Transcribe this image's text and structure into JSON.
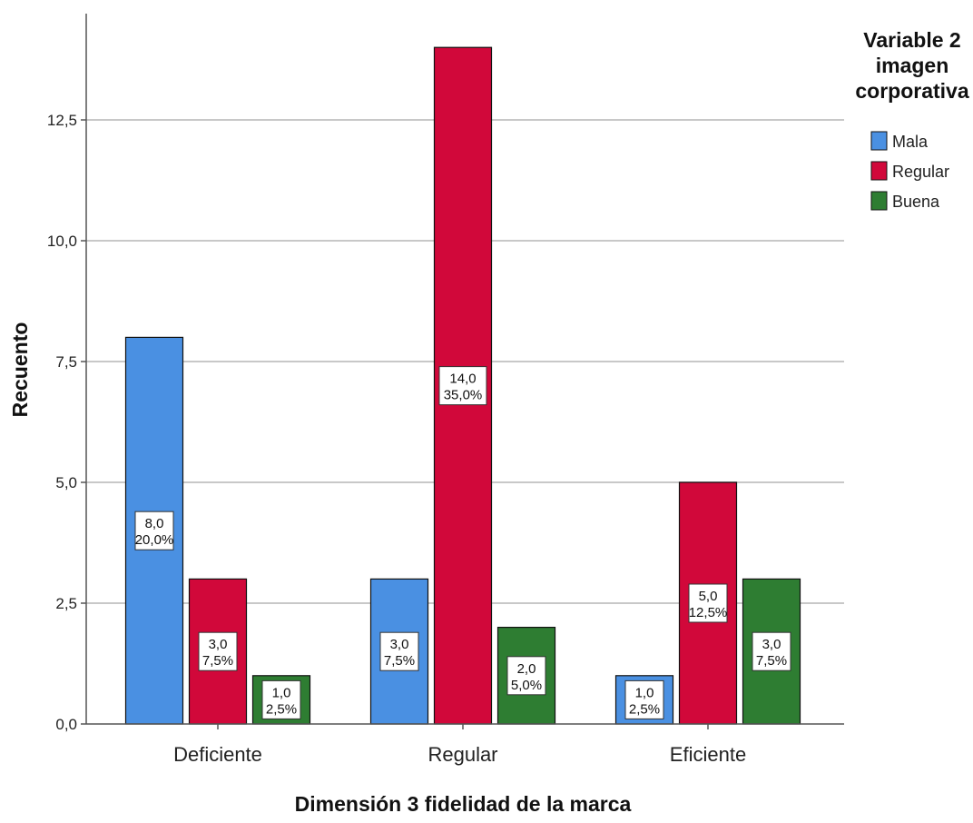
{
  "chart_data": {
    "type": "bar",
    "xlabel": "Dimensión 3 fidelidad de la marca",
    "ylabel": "Recuento",
    "categories": [
      "Deficiente",
      "Regular",
      "Eficiente"
    ],
    "ylim": [
      0,
      14
    ],
    "yticks": [
      "0,0",
      "2,5",
      "5,0",
      "7,5",
      "10,0",
      "12,5"
    ],
    "ytick_values": [
      0,
      2.5,
      5,
      7.5,
      10,
      12.5
    ],
    "grid": true,
    "legend": {
      "title_lines": [
        "Variable 2",
        "imagen",
        "corporativa"
      ],
      "placement": "right"
    },
    "series": [
      {
        "name": "Mala",
        "color": "#4a90e2",
        "values": [
          8,
          3,
          1
        ],
        "labels": [
          [
            "8,0",
            "20,0%"
          ],
          [
            "3,0",
            "7,5%"
          ],
          [
            "1,0",
            "2,5%"
          ]
        ]
      },
      {
        "name": "Regular",
        "color": "#d1083a",
        "values": [
          3,
          14,
          5
        ],
        "labels": [
          [
            "3,0",
            "7,5%"
          ],
          [
            "14,0",
            "35,0%"
          ],
          [
            "5,0",
            "12,5%"
          ]
        ]
      },
      {
        "name": "Buena",
        "color": "#2e7d32",
        "values": [
          1,
          2,
          3
        ],
        "labels": [
          [
            "1,0",
            "2,5%"
          ],
          [
            "2,0",
            "5,0%"
          ],
          [
            "3,0",
            "7,5%"
          ]
        ]
      }
    ]
  }
}
